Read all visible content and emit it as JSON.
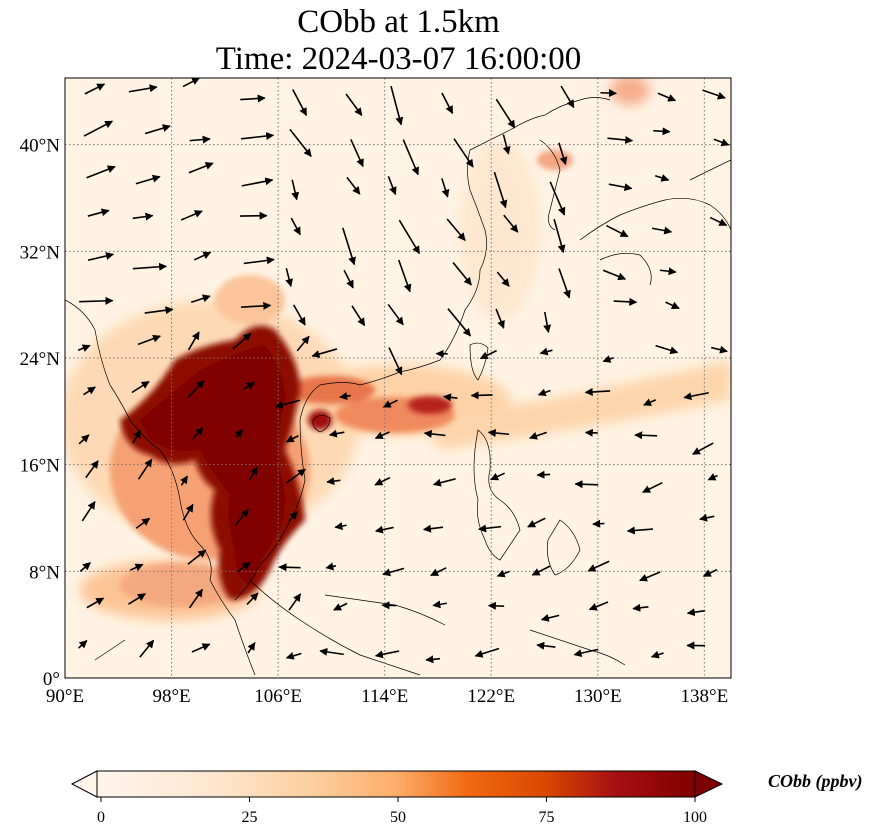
{
  "title_line1": "CObb at 1.5km",
  "title_line2": "Time: 2024-03-07 16:00:00",
  "map": {
    "lon_range": [
      90,
      140
    ],
    "lat_range": [
      0,
      45
    ],
    "lon_ticks": [
      "90°E",
      "98°E",
      "106°E",
      "114°E",
      "122°E",
      "130°E",
      "138°E"
    ],
    "lat_ticks": [
      "0°",
      "8°N",
      "16°N",
      "24°N",
      "32°N",
      "40°N"
    ],
    "gridlines": true,
    "field_colors": {
      "low": "#fff5eb",
      "mid": "#fdae6b",
      "high": "#d7301f",
      "max": "#7f0000"
    },
    "wind_arrow_color": "#000000"
  },
  "colorbar": {
    "label": "CObb (ppbv)",
    "ticks": [
      "0",
      "25",
      "50",
      "75",
      "100"
    ],
    "range": [
      0,
      100
    ],
    "extend": "both"
  }
}
